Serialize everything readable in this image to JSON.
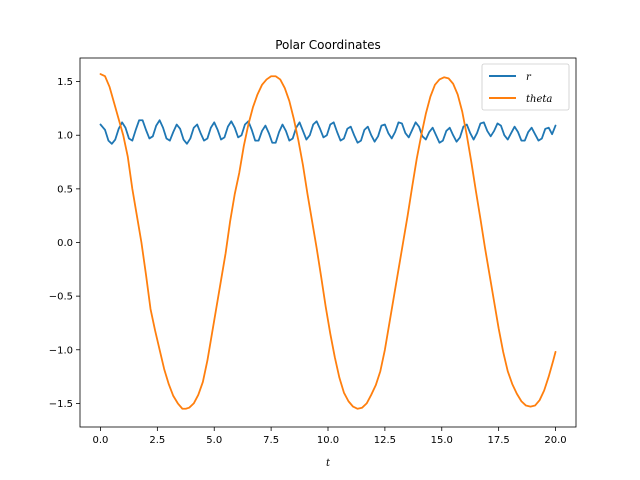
{
  "chart_data": {
    "type": "line",
    "title": "Polar Coordinates",
    "xlabel": "t",
    "ylabel": "",
    "xlim": [
      -0.9,
      20.9
    ],
    "ylim": [
      -1.72,
      1.72
    ],
    "xticks": [
      0.0,
      2.5,
      5.0,
      7.5,
      10.0,
      12.5,
      15.0,
      17.5,
      20.0
    ],
    "xtick_labels": [
      "0.0",
      "2.5",
      "5.0",
      "7.5",
      "10.0",
      "12.5",
      "15.0",
      "17.5",
      "20.0"
    ],
    "yticks": [
      -1.5,
      -1.0,
      -0.5,
      0.0,
      0.5,
      1.0,
      1.5
    ],
    "ytick_labels": [
      "−1.5",
      "−1.0",
      "−0.5",
      "0.0",
      "0.5",
      "1.0",
      "1.5"
    ],
    "grid": false,
    "legend_position": "top-right",
    "series": [
      {
        "name": "r",
        "color": "#1f77b4",
        "points": [
          [
            0.0,
            1.1
          ],
          [
            0.2,
            1.05
          ],
          [
            0.35,
            0.95
          ],
          [
            0.5,
            0.92
          ],
          [
            0.65,
            0.96
          ],
          [
            0.8,
            1.06
          ],
          [
            0.95,
            1.12
          ],
          [
            1.1,
            1.07
          ],
          [
            1.25,
            0.97
          ],
          [
            1.4,
            0.95
          ],
          [
            1.55,
            1.05
          ],
          [
            1.7,
            1.14
          ],
          [
            1.85,
            1.14
          ],
          [
            2.0,
            1.05
          ],
          [
            2.15,
            0.97
          ],
          [
            2.3,
            0.99
          ],
          [
            2.45,
            1.09
          ],
          [
            2.6,
            1.14
          ],
          [
            2.75,
            1.07
          ],
          [
            2.9,
            0.97
          ],
          [
            3.05,
            0.95
          ],
          [
            3.2,
            1.03
          ],
          [
            3.35,
            1.1
          ],
          [
            3.5,
            1.06
          ],
          [
            3.65,
            0.96
          ],
          [
            3.8,
            0.92
          ],
          [
            3.95,
            0.97
          ],
          [
            4.1,
            1.07
          ],
          [
            4.25,
            1.1
          ],
          [
            4.4,
            1.02
          ],
          [
            4.55,
            0.95
          ],
          [
            4.7,
            0.97
          ],
          [
            4.85,
            1.07
          ],
          [
            5.0,
            1.12
          ],
          [
            5.15,
            1.05
          ],
          [
            5.3,
            0.96
          ],
          [
            5.45,
            0.98
          ],
          [
            5.6,
            1.08
          ],
          [
            5.75,
            1.13
          ],
          [
            5.9,
            1.07
          ],
          [
            6.05,
            0.98
          ],
          [
            6.2,
            1.0
          ],
          [
            6.35,
            1.1
          ],
          [
            6.5,
            1.13
          ],
          [
            6.65,
            1.05
          ],
          [
            6.8,
            0.95
          ],
          [
            6.95,
            0.95
          ],
          [
            7.1,
            1.04
          ],
          [
            7.25,
            1.09
          ],
          [
            7.4,
            1.02
          ],
          [
            7.55,
            0.93
          ],
          [
            7.7,
            0.93
          ],
          [
            7.85,
            1.03
          ],
          [
            8.0,
            1.1
          ],
          [
            8.15,
            1.04
          ],
          [
            8.3,
            0.95
          ],
          [
            8.45,
            0.97
          ],
          [
            8.6,
            1.07
          ],
          [
            8.75,
            1.12
          ],
          [
            8.9,
            1.04
          ],
          [
            9.05,
            0.96
          ],
          [
            9.2,
            1.0
          ],
          [
            9.35,
            1.1
          ],
          [
            9.5,
            1.13
          ],
          [
            9.65,
            1.06
          ],
          [
            9.8,
            0.98
          ],
          [
            9.95,
            1.0
          ],
          [
            10.1,
            1.1
          ],
          [
            10.25,
            1.12
          ],
          [
            10.4,
            1.03
          ],
          [
            10.55,
            0.95
          ],
          [
            10.7,
            0.97
          ],
          [
            10.85,
            1.06
          ],
          [
            11.0,
            1.08
          ],
          [
            11.15,
            1.0
          ],
          [
            11.3,
            0.93
          ],
          [
            11.45,
            0.95
          ],
          [
            11.6,
            1.05
          ],
          [
            11.75,
            1.08
          ],
          [
            11.9,
            1.0
          ],
          [
            12.05,
            0.94
          ],
          [
            12.2,
            0.99
          ],
          [
            12.35,
            1.09
          ],
          [
            12.5,
            1.1
          ],
          [
            12.65,
            1.02
          ],
          [
            12.8,
            0.97
          ],
          [
            12.95,
            1.03
          ],
          [
            13.1,
            1.12
          ],
          [
            13.25,
            1.11
          ],
          [
            13.4,
            1.02
          ],
          [
            13.55,
            0.98
          ],
          [
            13.7,
            1.05
          ],
          [
            13.85,
            1.12
          ],
          [
            14.0,
            1.08
          ],
          [
            14.15,
            0.99
          ],
          [
            14.3,
            0.96
          ],
          [
            14.45,
            1.03
          ],
          [
            14.6,
            1.07
          ],
          [
            14.75,
            1.0
          ],
          [
            14.9,
            0.93
          ],
          [
            15.05,
            0.95
          ],
          [
            15.2,
            1.04
          ],
          [
            15.35,
            1.07
          ],
          [
            15.5,
            1.0
          ],
          [
            15.65,
            0.94
          ],
          [
            15.8,
            0.98
          ],
          [
            15.95,
            1.08
          ],
          [
            16.1,
            1.1
          ],
          [
            16.25,
            1.02
          ],
          [
            16.4,
            0.96
          ],
          [
            16.55,
            1.02
          ],
          [
            16.7,
            1.11
          ],
          [
            16.85,
            1.12
          ],
          [
            17.0,
            1.04
          ],
          [
            17.15,
            0.99
          ],
          [
            17.3,
            1.04
          ],
          [
            17.45,
            1.11
          ],
          [
            17.6,
            1.09
          ],
          [
            17.75,
            1.0
          ],
          [
            17.9,
            0.96
          ],
          [
            18.05,
            1.02
          ],
          [
            18.2,
            1.08
          ],
          [
            18.35,
            1.03
          ],
          [
            18.5,
            0.95
          ],
          [
            18.65,
            0.95
          ],
          [
            18.8,
            1.03
          ],
          [
            18.95,
            1.07
          ],
          [
            19.1,
            1.01
          ],
          [
            19.25,
            0.95
          ],
          [
            19.4,
            0.97
          ],
          [
            19.55,
            1.06
          ],
          [
            19.7,
            1.07
          ],
          [
            19.85,
            1.01
          ],
          [
            20.0,
            1.09
          ]
        ]
      },
      {
        "name": "theta",
        "color": "#ff7f0e",
        "points": [
          [
            0.0,
            1.57
          ],
          [
            0.2,
            1.55
          ],
          [
            0.4,
            1.45
          ],
          [
            0.6,
            1.3
          ],
          [
            0.8,
            1.15
          ],
          [
            1.0,
            1.0
          ],
          [
            1.2,
            0.8
          ],
          [
            1.4,
            0.5
          ],
          [
            1.6,
            0.25
          ],
          [
            1.8,
            0.0
          ],
          [
            2.0,
            -0.3
          ],
          [
            2.2,
            -0.62
          ],
          [
            2.4,
            -0.82
          ],
          [
            2.6,
            -1.0
          ],
          [
            2.8,
            -1.18
          ],
          [
            3.0,
            -1.32
          ],
          [
            3.2,
            -1.43
          ],
          [
            3.4,
            -1.5
          ],
          [
            3.6,
            -1.55
          ],
          [
            3.75,
            -1.55
          ],
          [
            3.9,
            -1.54
          ],
          [
            4.1,
            -1.5
          ],
          [
            4.3,
            -1.42
          ],
          [
            4.5,
            -1.3
          ],
          [
            4.7,
            -1.1
          ],
          [
            4.9,
            -0.85
          ],
          [
            5.1,
            -0.6
          ],
          [
            5.3,
            -0.35
          ],
          [
            5.5,
            -0.1
          ],
          [
            5.7,
            0.2
          ],
          [
            5.9,
            0.45
          ],
          [
            6.1,
            0.65
          ],
          [
            6.3,
            0.9
          ],
          [
            6.5,
            1.1
          ],
          [
            6.7,
            1.26
          ],
          [
            6.9,
            1.38
          ],
          [
            7.1,
            1.47
          ],
          [
            7.3,
            1.52
          ],
          [
            7.5,
            1.55
          ],
          [
            7.7,
            1.55
          ],
          [
            7.9,
            1.52
          ],
          [
            8.1,
            1.44
          ],
          [
            8.3,
            1.32
          ],
          [
            8.5,
            1.15
          ],
          [
            8.7,
            0.95
          ],
          [
            8.9,
            0.72
          ],
          [
            9.1,
            0.45
          ],
          [
            9.3,
            0.2
          ],
          [
            9.5,
            -0.05
          ],
          [
            9.7,
            -0.32
          ],
          [
            9.9,
            -0.6
          ],
          [
            10.1,
            -0.85
          ],
          [
            10.3,
            -1.07
          ],
          [
            10.5,
            -1.26
          ],
          [
            10.7,
            -1.4
          ],
          [
            10.9,
            -1.48
          ],
          [
            11.1,
            -1.53
          ],
          [
            11.3,
            -1.55
          ],
          [
            11.5,
            -1.54
          ],
          [
            11.7,
            -1.5
          ],
          [
            11.9,
            -1.42
          ],
          [
            12.1,
            -1.33
          ],
          [
            12.3,
            -1.2
          ],
          [
            12.5,
            -1.0
          ],
          [
            12.7,
            -0.75
          ],
          [
            12.9,
            -0.5
          ],
          [
            13.1,
            -0.25
          ],
          [
            13.3,
            0.0
          ],
          [
            13.5,
            0.25
          ],
          [
            13.7,
            0.52
          ],
          [
            13.9,
            0.78
          ],
          [
            14.1,
            1.0
          ],
          [
            14.3,
            1.2
          ],
          [
            14.5,
            1.36
          ],
          [
            14.7,
            1.47
          ],
          [
            14.9,
            1.52
          ],
          [
            15.1,
            1.54
          ],
          [
            15.3,
            1.53
          ],
          [
            15.5,
            1.48
          ],
          [
            15.7,
            1.38
          ],
          [
            15.9,
            1.22
          ],
          [
            16.1,
            1.0
          ],
          [
            16.3,
            0.75
          ],
          [
            16.5,
            0.48
          ],
          [
            16.7,
            0.22
          ],
          [
            16.9,
            -0.05
          ],
          [
            17.1,
            -0.3
          ],
          [
            17.3,
            -0.55
          ],
          [
            17.5,
            -0.8
          ],
          [
            17.7,
            -1.02
          ],
          [
            17.9,
            -1.2
          ],
          [
            18.1,
            -1.32
          ],
          [
            18.3,
            -1.41
          ],
          [
            18.5,
            -1.48
          ],
          [
            18.7,
            -1.52
          ],
          [
            18.9,
            -1.53
          ],
          [
            19.1,
            -1.52
          ],
          [
            19.3,
            -1.47
          ],
          [
            19.5,
            -1.38
          ],
          [
            19.7,
            -1.25
          ],
          [
            19.9,
            -1.1
          ],
          [
            20.0,
            -1.02
          ]
        ]
      }
    ]
  }
}
